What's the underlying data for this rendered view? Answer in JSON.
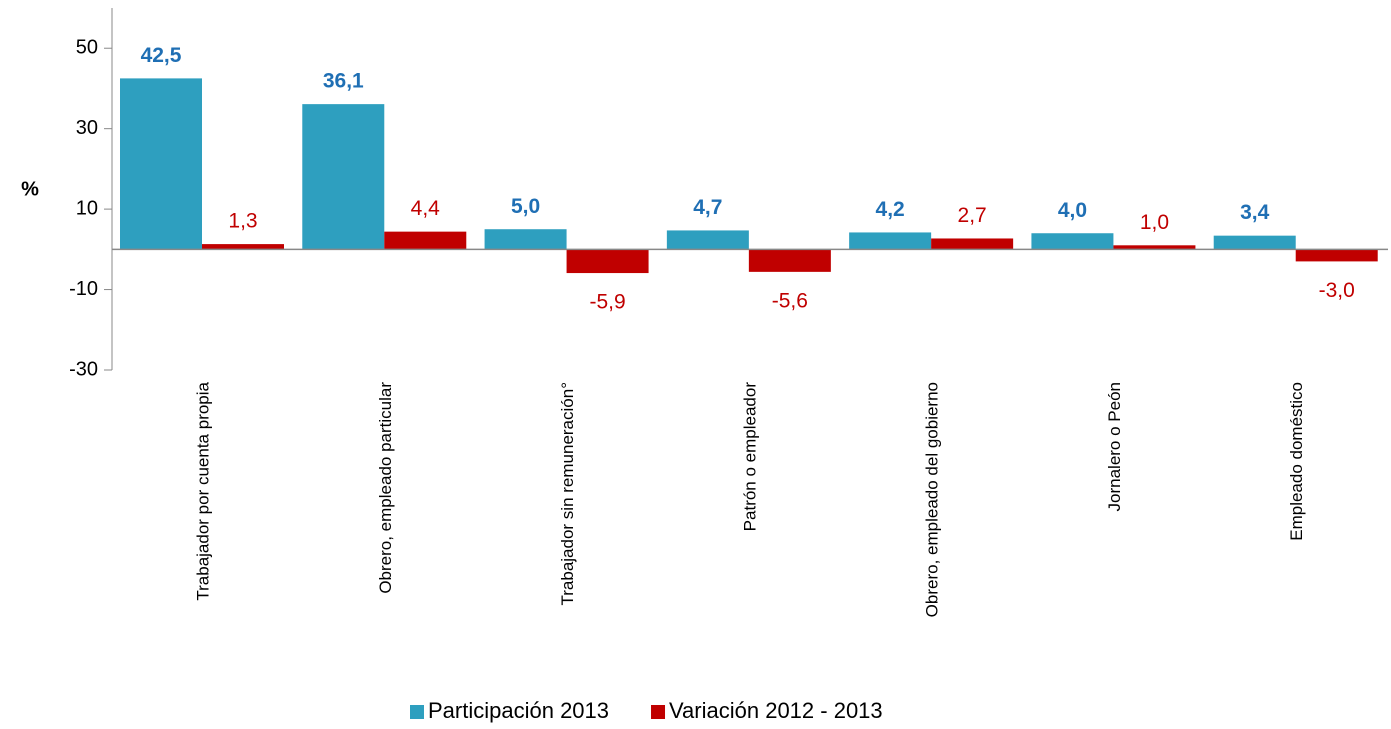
{
  "chart_data": {
    "type": "bar",
    "y_label": "%",
    "categories": [
      "Trabajador por cuenta propia",
      "Obrero, empleado particular",
      "Trabajador sin remuneración°",
      "Patrón o empleador",
      "Obrero, empleado del gobierno",
      "Jornalero o Peón",
      "Empleado doméstico"
    ],
    "series": [
      {
        "name": "Participación 2013",
        "color": "#2e9fbf",
        "label_color": "#1f6fb4",
        "values": [
          42.5,
          36.1,
          5.0,
          4.7,
          4.2,
          4.0,
          3.4
        ],
        "value_labels": [
          "42,5",
          "36,1",
          "5,0",
          "4,7",
          "4,2",
          "4,0",
          "3,4"
        ]
      },
      {
        "name": "Variación 2012 - 2013",
        "color": "#c00000",
        "label_color": "#c00000",
        "values": [
          1.3,
          4.4,
          -5.9,
          -5.6,
          2.7,
          1.0,
          -3.0
        ],
        "value_labels": [
          "1,3",
          "4,4",
          "-5,9",
          "-5,6",
          "2,7",
          "1,0",
          "-3,0"
        ]
      }
    ],
    "ylim": [
      -30,
      60
    ],
    "yticks": [
      -30,
      -10,
      10,
      30,
      50
    ],
    "legend": "bottom"
  }
}
